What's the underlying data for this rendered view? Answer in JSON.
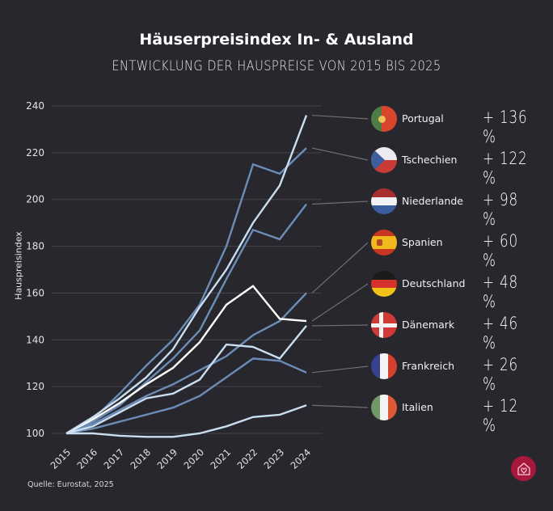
{
  "title": "Häuserpreisindex In- & Ausland",
  "subtitle": "ENTWICKLUNG DER HAUSPREISE VON 2015 BIS 2025",
  "source": "Quelle: Eurostat, 2025",
  "logo_icon": "house-heart-icon",
  "chart_data": {
    "type": "line",
    "title": "Häuserpreisindex In- & Ausland",
    "subtitle": "ENTWICKLUNG DER HAUSPREISE VON 2015 BIS 2025",
    "xlabel": "",
    "ylabel": "Hauspreisindex",
    "ylim": [
      100,
      240
    ],
    "yticks": [
      100,
      120,
      140,
      160,
      180,
      200,
      220,
      240
    ],
    "grid": true,
    "legend_position": "right",
    "x": [
      "2015",
      "2016",
      "2017",
      "2018",
      "2019",
      "2020",
      "2021",
      "2022",
      "2023",
      "2024"
    ],
    "series": [
      {
        "name": "Portugal",
        "change": "+ 136 %",
        "color": "#c9def0",
        "flag": "portugal-flag-icon",
        "values": [
          100,
          107,
          115,
          124,
          136,
          154,
          170,
          190,
          206,
          236
        ]
      },
      {
        "name": "Tschechien",
        "change": "+ 122 %",
        "color": "#6b8db8",
        "flag": "czech-flag-icon",
        "values": [
          100,
          106,
          117,
          129,
          140,
          155,
          180,
          215,
          211,
          222
        ]
      },
      {
        "name": "Niederlande",
        "change": "+ 98 %",
        "color": "#6b8db8",
        "flag": "netherlands-flag-icon",
        "values": [
          100,
          105,
          112,
          122,
          132,
          144,
          166,
          187,
          183,
          198
        ]
      },
      {
        "name": "Spanien",
        "change": "+ 60 %",
        "color": "#6b8db8",
        "flag": "spain-flag-icon",
        "values": [
          100,
          104,
          110,
          116,
          121,
          127,
          133,
          142,
          148,
          160
        ]
      },
      {
        "name": "Deutschland",
        "change": "+ 48 %",
        "color": "#ffffff",
        "flag": "germany-flag-icon",
        "values": [
          100,
          106,
          113,
          121,
          128,
          139,
          155,
          163,
          149,
          148
        ]
      },
      {
        "name": "Dänemark",
        "change": "+ 46 %",
        "color": "#c9def0",
        "flag": "denmark-flag-icon",
        "values": [
          100,
          103,
          109,
          115,
          117,
          123,
          138,
          137,
          132,
          146
        ]
      },
      {
        "name": "Frankreich",
        "change": "+ 26 %",
        "color": "#6b8db8",
        "flag": "france-flag-icon",
        "values": [
          100,
          102,
          105,
          108,
          111,
          116,
          124,
          132,
          131,
          126
        ]
      },
      {
        "name": "Italien",
        "change": "+ 12 %",
        "color": "#c9def0",
        "flag": "italy-flag-icon",
        "values": [
          100,
          100,
          99,
          98.5,
          98.5,
          100,
          103,
          107,
          108,
          112
        ]
      }
    ]
  }
}
